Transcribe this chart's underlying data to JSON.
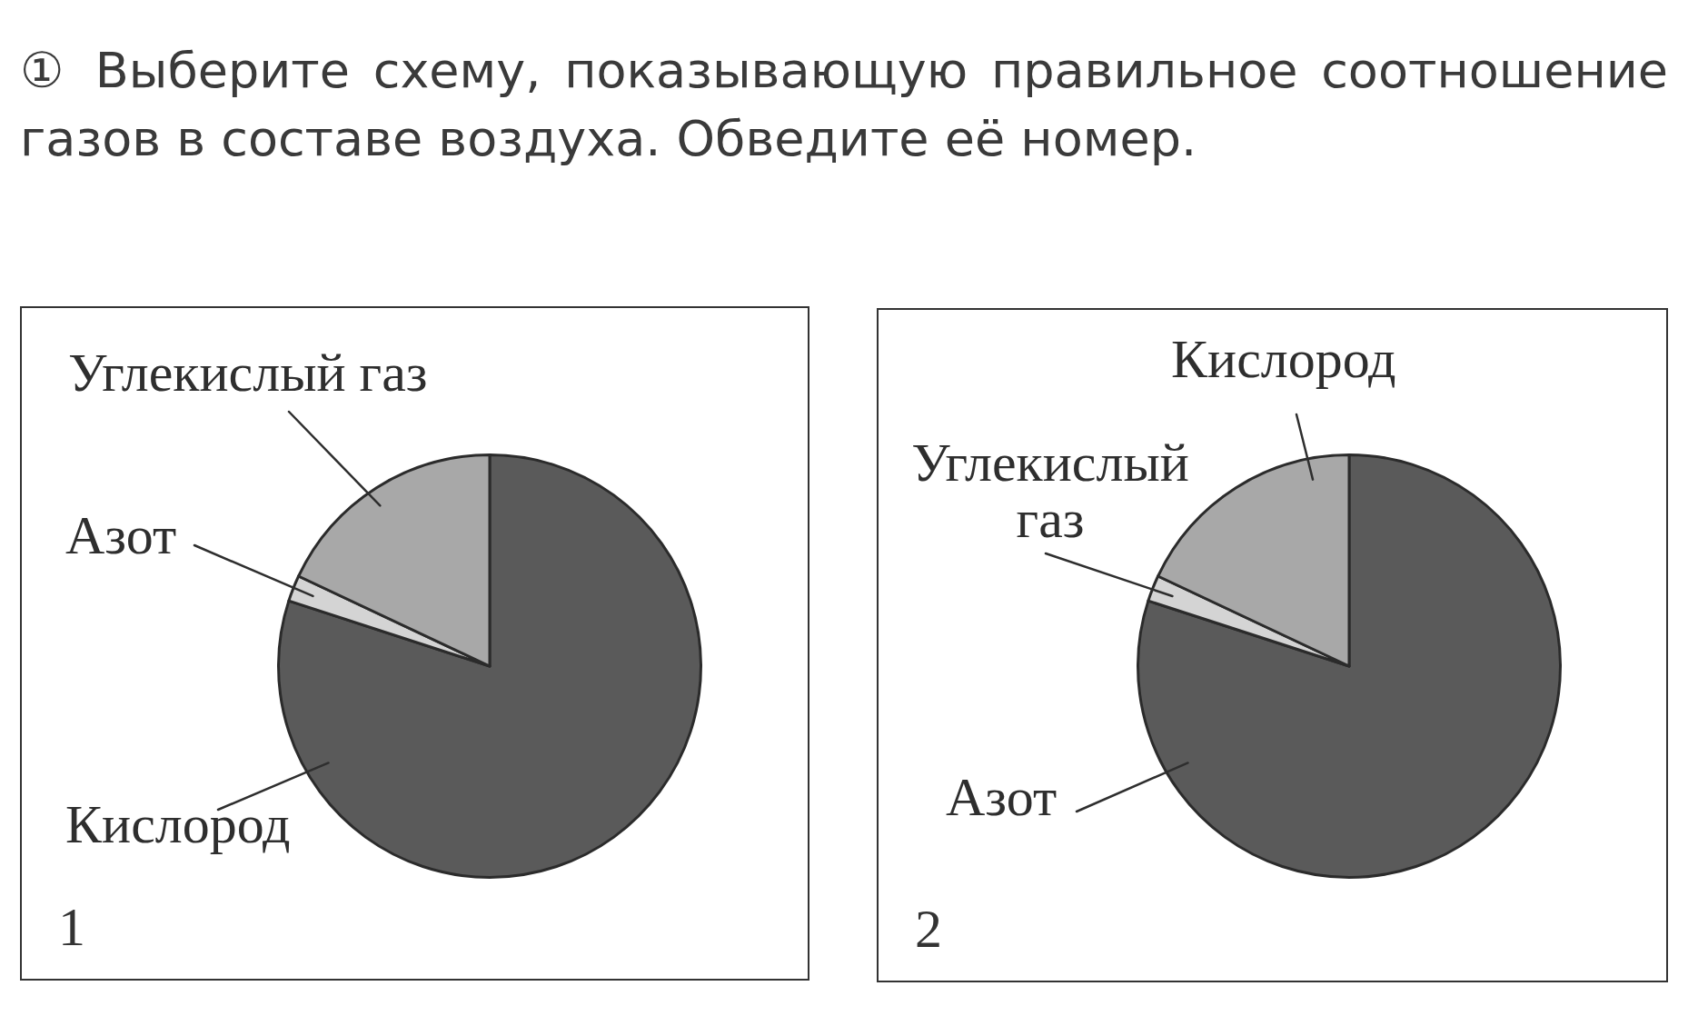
{
  "chart_data": [
    {
      "type": "pie",
      "title": "① Выберите схему, показывающую правильное соотношение газов в составе воздуха. Обведите её номер.",
      "categories": [
        "Кислород",
        "Азот",
        "Углекислый газ"
      ],
      "values": [
        80,
        2,
        18
      ],
      "colors": [
        "#5a5a5a",
        "#d4d4d4",
        "#a8a8a8"
      ],
      "annotations": [
        "1"
      ]
    },
    {
      "type": "pie",
      "categories": [
        "Азот",
        "Углекислый газ",
        "Кислород"
      ],
      "values": [
        80,
        2,
        18
      ],
      "colors": [
        "#5a5a5a",
        "#d4d4d4",
        "#a8a8a8"
      ],
      "annotations": [
        "2"
      ]
    }
  ]
}
